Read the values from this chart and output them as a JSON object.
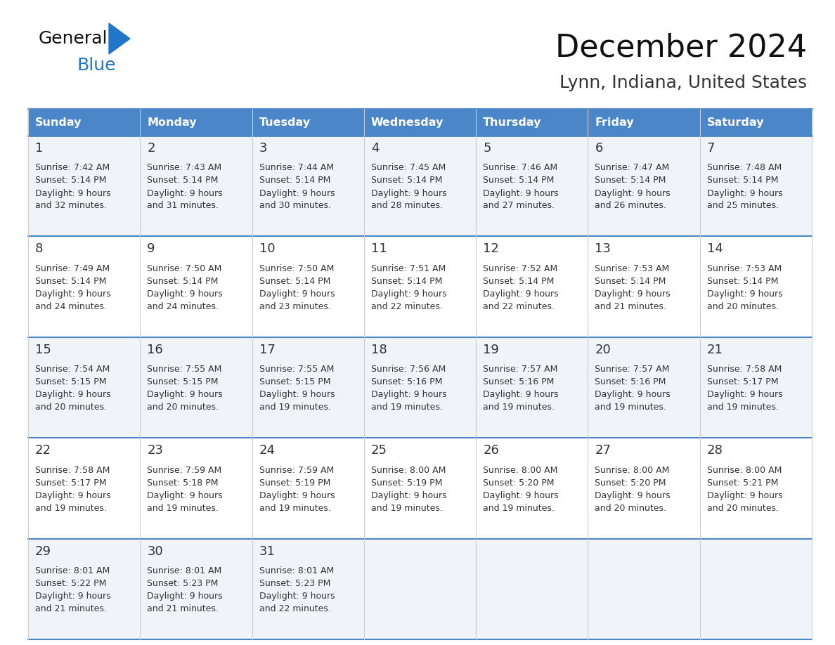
{
  "title": "December 2024",
  "subtitle": "Lynn, Indiana, United States",
  "header_color": "#4a86c8",
  "header_text_color": "#ffffff",
  "background_color": "#ffffff",
  "cell_bg_even": "#f0f4f8",
  "cell_bg_odd": "#ffffff",
  "grid_line_color": "#4a86c8",
  "vert_line_color": "#cccccc",
  "text_color": "#333333",
  "days_of_week": [
    "Sunday",
    "Monday",
    "Tuesday",
    "Wednesday",
    "Thursday",
    "Friday",
    "Saturday"
  ],
  "calendar_data": [
    [
      {
        "day": 1,
        "sunrise": "7:42 AM",
        "sunset": "5:14 PM",
        "daylight": "9 hours and 32 minutes."
      },
      {
        "day": 2,
        "sunrise": "7:43 AM",
        "sunset": "5:14 PM",
        "daylight": "9 hours and 31 minutes."
      },
      {
        "day": 3,
        "sunrise": "7:44 AM",
        "sunset": "5:14 PM",
        "daylight": "9 hours and 30 minutes."
      },
      {
        "day": 4,
        "sunrise": "7:45 AM",
        "sunset": "5:14 PM",
        "daylight": "9 hours and 28 minutes."
      },
      {
        "day": 5,
        "sunrise": "7:46 AM",
        "sunset": "5:14 PM",
        "daylight": "9 hours and 27 minutes."
      },
      {
        "day": 6,
        "sunrise": "7:47 AM",
        "sunset": "5:14 PM",
        "daylight": "9 hours and 26 minutes."
      },
      {
        "day": 7,
        "sunrise": "7:48 AM",
        "sunset": "5:14 PM",
        "daylight": "9 hours and 25 minutes."
      }
    ],
    [
      {
        "day": 8,
        "sunrise": "7:49 AM",
        "sunset": "5:14 PM",
        "daylight": "9 hours and 24 minutes."
      },
      {
        "day": 9,
        "sunrise": "7:50 AM",
        "sunset": "5:14 PM",
        "daylight": "9 hours and 24 minutes."
      },
      {
        "day": 10,
        "sunrise": "7:50 AM",
        "sunset": "5:14 PM",
        "daylight": "9 hours and 23 minutes."
      },
      {
        "day": 11,
        "sunrise": "7:51 AM",
        "sunset": "5:14 PM",
        "daylight": "9 hours and 22 minutes."
      },
      {
        "day": 12,
        "sunrise": "7:52 AM",
        "sunset": "5:14 PM",
        "daylight": "9 hours and 22 minutes."
      },
      {
        "day": 13,
        "sunrise": "7:53 AM",
        "sunset": "5:14 PM",
        "daylight": "9 hours and 21 minutes."
      },
      {
        "day": 14,
        "sunrise": "7:53 AM",
        "sunset": "5:14 PM",
        "daylight": "9 hours and 20 minutes."
      }
    ],
    [
      {
        "day": 15,
        "sunrise": "7:54 AM",
        "sunset": "5:15 PM",
        "daylight": "9 hours and 20 minutes."
      },
      {
        "day": 16,
        "sunrise": "7:55 AM",
        "sunset": "5:15 PM",
        "daylight": "9 hours and 20 minutes."
      },
      {
        "day": 17,
        "sunrise": "7:55 AM",
        "sunset": "5:15 PM",
        "daylight": "9 hours and 19 minutes."
      },
      {
        "day": 18,
        "sunrise": "7:56 AM",
        "sunset": "5:16 PM",
        "daylight": "9 hours and 19 minutes."
      },
      {
        "day": 19,
        "sunrise": "7:57 AM",
        "sunset": "5:16 PM",
        "daylight": "9 hours and 19 minutes."
      },
      {
        "day": 20,
        "sunrise": "7:57 AM",
        "sunset": "5:16 PM",
        "daylight": "9 hours and 19 minutes."
      },
      {
        "day": 21,
        "sunrise": "7:58 AM",
        "sunset": "5:17 PM",
        "daylight": "9 hours and 19 minutes."
      }
    ],
    [
      {
        "day": 22,
        "sunrise": "7:58 AM",
        "sunset": "5:17 PM",
        "daylight": "9 hours and 19 minutes."
      },
      {
        "day": 23,
        "sunrise": "7:59 AM",
        "sunset": "5:18 PM",
        "daylight": "9 hours and 19 minutes."
      },
      {
        "day": 24,
        "sunrise": "7:59 AM",
        "sunset": "5:19 PM",
        "daylight": "9 hours and 19 minutes."
      },
      {
        "day": 25,
        "sunrise": "8:00 AM",
        "sunset": "5:19 PM",
        "daylight": "9 hours and 19 minutes."
      },
      {
        "day": 26,
        "sunrise": "8:00 AM",
        "sunset": "5:20 PM",
        "daylight": "9 hours and 19 minutes."
      },
      {
        "day": 27,
        "sunrise": "8:00 AM",
        "sunset": "5:20 PM",
        "daylight": "9 hours and 20 minutes."
      },
      {
        "day": 28,
        "sunrise": "8:00 AM",
        "sunset": "5:21 PM",
        "daylight": "9 hours and 20 minutes."
      }
    ],
    [
      {
        "day": 29,
        "sunrise": "8:01 AM",
        "sunset": "5:22 PM",
        "daylight": "9 hours and 21 minutes."
      },
      {
        "day": 30,
        "sunrise": "8:01 AM",
        "sunset": "5:23 PM",
        "daylight": "9 hours and 21 minutes."
      },
      {
        "day": 31,
        "sunrise": "8:01 AM",
        "sunset": "5:23 PM",
        "daylight": "9 hours and 22 minutes."
      },
      null,
      null,
      null,
      null
    ]
  ]
}
